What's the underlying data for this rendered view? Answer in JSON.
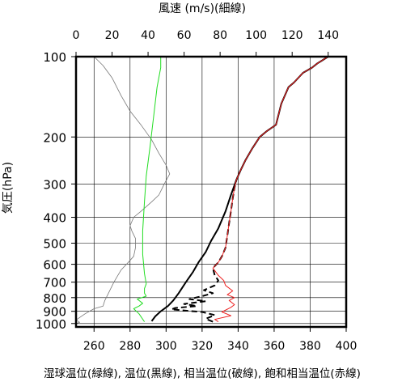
{
  "chart_data": {
    "type": "line",
    "title": "",
    "top_axis_label": "風速 (m/s)(細線)",
    "top_axis_ticks": [
      0,
      20,
      40,
      60,
      80,
      100,
      120,
      140
    ],
    "top_axis_range": [
      0,
      150
    ],
    "ylabel": "気圧(hPa)",
    "y_scale": "log",
    "y_ticks": [
      100,
      200,
      300,
      400,
      500,
      600,
      700,
      800,
      900,
      1000
    ],
    "y_range": [
      1030,
      100
    ],
    "xlabel": "湿球温位(緑線), 温位(黒線), 相当温位(破線), 飽和相当温位(赤線)",
    "x_ticks": [
      260,
      280,
      300,
      320,
      340,
      360,
      380,
      400
    ],
    "x_range": [
      250,
      400
    ],
    "grid": true,
    "series": [
      {
        "name": "風速",
        "axis": "top",
        "color": "#777777",
        "style": "thin",
        "points": [
          [
            0,
            1000
          ],
          [
            2,
            990
          ],
          [
            0,
            970
          ],
          [
            5,
            920
          ],
          [
            10,
            880
          ],
          [
            15,
            860
          ],
          [
            16,
            820
          ],
          [
            18,
            770
          ],
          [
            21,
            700
          ],
          [
            25,
            630
          ],
          [
            29,
            590
          ],
          [
            32,
            560
          ],
          [
            33,
            520
          ],
          [
            33,
            480
          ],
          [
            31,
            450
          ],
          [
            30,
            430
          ],
          [
            32,
            400
          ],
          [
            36,
            380
          ],
          [
            42,
            350
          ],
          [
            46,
            330
          ],
          [
            49,
            300
          ],
          [
            52,
            275
          ],
          [
            50,
            255
          ],
          [
            46,
            230
          ],
          [
            42,
            205
          ],
          [
            36,
            180
          ],
          [
            30,
            160
          ],
          [
            25,
            140
          ],
          [
            20,
            120
          ],
          [
            15,
            108
          ],
          [
            10,
            100
          ]
        ]
      },
      {
        "name": "湿球温位",
        "axis": "bottom",
        "color": "#22dd22",
        "style": "solid",
        "points": [
          [
            288,
            985
          ],
          [
            285,
            920
          ],
          [
            282,
            880
          ],
          [
            285,
            860
          ],
          [
            287,
            840
          ],
          [
            284,
            810
          ],
          [
            289,
            790
          ],
          [
            288,
            770
          ],
          [
            288,
            740
          ],
          [
            289,
            710
          ],
          [
            288,
            650
          ],
          [
            287,
            550
          ],
          [
            287,
            450
          ],
          [
            288,
            350
          ],
          [
            289,
            280
          ],
          [
            291,
            220
          ],
          [
            293,
            170
          ],
          [
            295,
            130
          ],
          [
            297,
            110
          ],
          [
            297,
            100
          ]
        ]
      },
      {
        "name": "温位",
        "axis": "bottom",
        "color": "#000000",
        "style": "solid",
        "points": [
          [
            292,
            980
          ],
          [
            294,
            940
          ],
          [
            297,
            900
          ],
          [
            301,
            860
          ],
          [
            304,
            820
          ],
          [
            307,
            770
          ],
          [
            311,
            700
          ],
          [
            315,
            640
          ],
          [
            318,
            590
          ],
          [
            322,
            540
          ],
          [
            325,
            490
          ],
          [
            329,
            440
          ],
          [
            333,
            380
          ],
          [
            336,
            330
          ],
          [
            339,
            290
          ],
          [
            341,
            270
          ],
          [
            344,
            245
          ],
          [
            348,
            220
          ],
          [
            352,
            200
          ],
          [
            356,
            190
          ],
          [
            361,
            180
          ],
          [
            364,
            150
          ],
          [
            368,
            130
          ],
          [
            371,
            125
          ],
          [
            376,
            115
          ],
          [
            381,
            110
          ],
          [
            384,
            106
          ],
          [
            386,
            104
          ],
          [
            390,
            100
          ]
        ]
      },
      {
        "name": "相当温位",
        "axis": "bottom",
        "color": "#000000",
        "style": "dashed",
        "points": [
          [
            326,
            985
          ],
          [
            322,
            960
          ],
          [
            327,
            930
          ],
          [
            320,
            905
          ],
          [
            311,
            895
          ],
          [
            303,
            885
          ],
          [
            305,
            875
          ],
          [
            317,
            860
          ],
          [
            310,
            845
          ],
          [
            322,
            825
          ],
          [
            313,
            810
          ],
          [
            320,
            790
          ],
          [
            326,
            770
          ],
          [
            321,
            750
          ],
          [
            327,
            720
          ],
          [
            329,
            690
          ],
          [
            327,
            660
          ],
          [
            326,
            620
          ],
          [
            329,
            590
          ],
          [
            331,
            560
          ],
          [
            333,
            520
          ],
          [
            334,
            470
          ],
          [
            335,
            420
          ],
          [
            336,
            380
          ],
          [
            337,
            340
          ],
          [
            338,
            310
          ],
          [
            339,
            290
          ],
          [
            341,
            270
          ]
        ]
      },
      {
        "name": "飽和相当温位",
        "axis": "bottom",
        "color": "#ee2222",
        "style": "solid",
        "points": [
          [
            329,
            985
          ],
          [
            327,
            965
          ],
          [
            336,
            935
          ],
          [
            331,
            905
          ],
          [
            336,
            870
          ],
          [
            338,
            850
          ],
          [
            335,
            820
          ],
          [
            338,
            800
          ],
          [
            334,
            780
          ],
          [
            337,
            755
          ],
          [
            333,
            720
          ],
          [
            332,
            690
          ],
          [
            329,
            660
          ],
          [
            326,
            620
          ],
          [
            329,
            590
          ],
          [
            331,
            560
          ],
          [
            333,
            520
          ],
          [
            334,
            470
          ],
          [
            335,
            420
          ],
          [
            336,
            380
          ],
          [
            337,
            340
          ],
          [
            338,
            310
          ],
          [
            339,
            290
          ],
          [
            341,
            270
          ],
          [
            344,
            245
          ],
          [
            348,
            220
          ],
          [
            352,
            200
          ],
          [
            356,
            190
          ],
          [
            361,
            180
          ],
          [
            364,
            150
          ],
          [
            368,
            130
          ],
          [
            371,
            125
          ],
          [
            376,
            115
          ],
          [
            381,
            110
          ],
          [
            384,
            106
          ],
          [
            386,
            104
          ],
          [
            390,
            100
          ]
        ]
      }
    ]
  }
}
